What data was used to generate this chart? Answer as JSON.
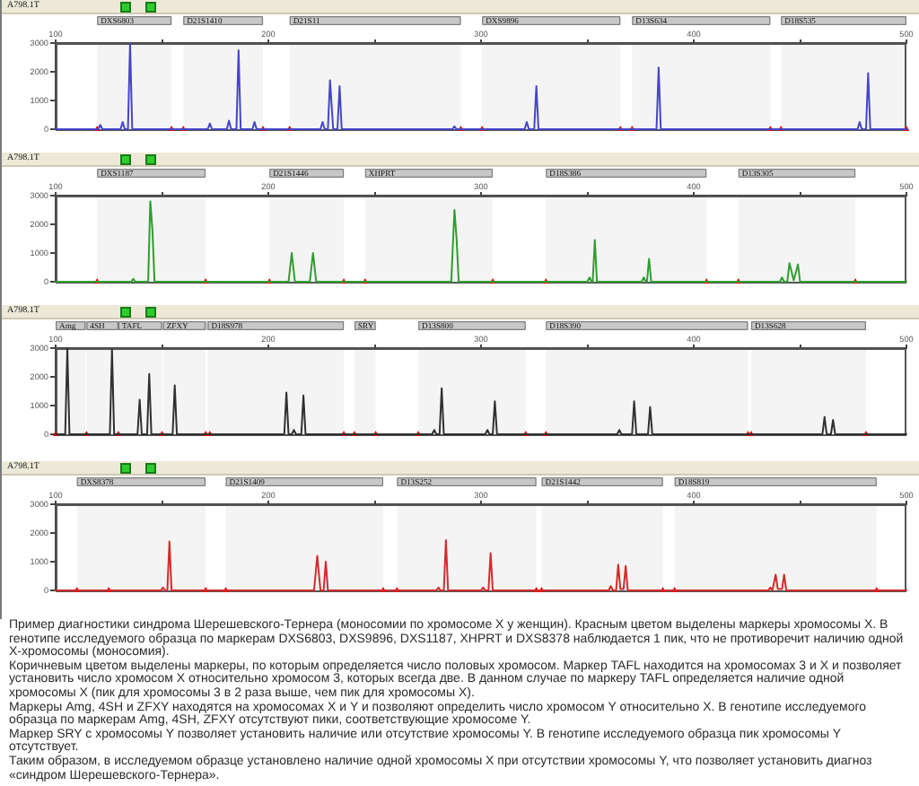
{
  "chart_data": [
    {
      "type": "line",
      "title": "A798.1T",
      "xlim": [
        100,
        500
      ],
      "xticks": [
        100,
        {
          "value": 150,
          "label": null
        },
        200,
        {
          "value": 250,
          "label": null
        },
        300,
        {
          "value": 350,
          "label": null
        },
        400,
        {
          "value": 450,
          "label": null
        },
        500
      ],
      "ylim": [
        0,
        3000
      ],
      "yticks": [
        0,
        1000,
        2000,
        3000
      ],
      "bands": [
        {
          "axis": "x",
          "from": 119.5,
          "to": 154.5,
          "label": "DXS6803",
          "color": "#c8c8c8"
        },
        {
          "axis": "x",
          "from": 160,
          "to": 197.5,
          "label": "D21S1410",
          "color": "#c8c8c8"
        },
        {
          "axis": "x",
          "from": 210,
          "to": 290.5,
          "label": "D21S11",
          "color": "#c8c8c8"
        },
        {
          "axis": "x",
          "from": 300.5,
          "to": 365.5,
          "label": "DXS9896",
          "color": "#c8c8c8"
        },
        {
          "axis": "x",
          "from": 371,
          "to": 436,
          "label": "D13S634",
          "color": "#c8c8c8"
        },
        {
          "axis": "x",
          "from": 441,
          "to": 500,
          "label": "D18S535",
          "color": "#c8c8c8"
        }
      ],
      "series": [
        {
          "color": "#4545c8",
          "x": [
            100,
            120,
            121,
            122,
            130.5,
            131.5,
            132.5,
            134,
            135,
            136,
            171.5,
            172.5,
            173.5,
            180.5,
            181.5,
            182.5,
            185,
            186,
            187,
            192.5,
            193.5,
            194.5,
            224.5,
            225.5,
            226.5,
            228,
            229,
            230.5,
            232.5,
            233.5,
            234.5,
            286.5,
            287.5,
            288.5,
            320.5,
            321.5,
            322.5,
            325,
            326,
            327,
            382.5,
            383.5,
            384.5,
            477,
            478,
            479,
            481,
            482,
            483,
            500
          ],
          "values": [
            0,
            0,
            150,
            0,
            0,
            250,
            0,
            0,
            3000,
            0,
            0,
            200,
            0,
            0,
            300,
            0,
            0,
            2750,
            0,
            0,
            250,
            0,
            0,
            250,
            0,
            0,
            1700,
            0,
            0,
            1500,
            0,
            0,
            100,
            0,
            0,
            250,
            0,
            0,
            1500,
            0,
            0,
            2150,
            0,
            0,
            250,
            0,
            0,
            1950,
            0,
            0
          ]
        },
        {
          "type": "scatter",
          "marker": "triangle",
          "color": "#e01010",
          "x": [
            119.5,
            154.5,
            160,
            197.5,
            210,
            290.5,
            300.5,
            365.5,
            371,
            436,
            441,
            500
          ],
          "values": [
            0,
            0,
            0,
            0,
            0,
            0,
            0,
            0,
            0,
            0,
            0,
            0
          ]
        }
      ]
    },
    {
      "type": "line",
      "title": "A798.1T",
      "xlim": [
        100,
        500
      ],
      "xticks": [
        100,
        {
          "value": 150,
          "label": null
        },
        200,
        {
          "value": 250,
          "label": null
        },
        300,
        {
          "value": 350,
          "label": null
        },
        400,
        {
          "value": 450,
          "label": null
        },
        500
      ],
      "ylim": [
        0,
        3000
      ],
      "yticks": [
        0,
        1000,
        2000,
        3000
      ],
      "bands": [
        {
          "axis": "x",
          "from": 119.5,
          "to": 170.5,
          "label": "DXS1187",
          "color": "#c8c8c8"
        },
        {
          "axis": "x",
          "from": 200.5,
          "to": 235.5,
          "label": "D21S1446",
          "color": "#c8c8c8"
        },
        {
          "axis": "x",
          "from": 245.5,
          "to": 305.5,
          "label": "XHPRT",
          "color": "#c8c8c8"
        },
        {
          "axis": "x",
          "from": 330.5,
          "to": 406,
          "label": "D18S386",
          "color": "#c8c8c8"
        },
        {
          "axis": "x",
          "from": 421,
          "to": 476,
          "label": "D13S305",
          "color": "#c8c8c8"
        }
      ],
      "series": [
        {
          "color": "#2e9e2e",
          "x": [
            100,
            135.5,
            136.5,
            137.5,
            143.5,
            144.5,
            145.5,
            146.5,
            209.5,
            211,
            212.5,
            219.5,
            221,
            222.5,
            286,
            287.5,
            288.5,
            289.5,
            350,
            351,
            352,
            352.5,
            353.5,
            354.5,
            375.5,
            376.5,
            377.5,
            378,
            379,
            380,
            440.5,
            441.5,
            442.5,
            444,
            445,
            447,
            449,
            450,
            500
          ],
          "values": [
            0,
            0,
            100,
            0,
            0,
            2800,
            1800,
            0,
            0,
            1000,
            0,
            0,
            1000,
            0,
            0,
            2500,
            1500,
            0,
            0,
            150,
            0,
            0,
            1450,
            0,
            0,
            150,
            0,
            0,
            800,
            0,
            0,
            150,
            0,
            0,
            650,
            50,
            600,
            0,
            0
          ]
        },
        {
          "type": "scatter",
          "marker": "triangle",
          "color": "#e01010",
          "x": [
            119.5,
            170.5,
            200.5,
            235.5,
            245.5,
            305.5,
            330.5,
            406,
            421,
            476
          ],
          "values": [
            0,
            0,
            0,
            0,
            0,
            0,
            0,
            0,
            0,
            0
          ]
        }
      ]
    },
    {
      "type": "line",
      "title": "A798.1T",
      "xlim": [
        100,
        500
      ],
      "xticks": [
        100,
        {
          "value": 150,
          "label": null
        },
        200,
        {
          "value": 250,
          "label": null
        },
        300,
        {
          "value": 350,
          "label": null
        },
        400,
        {
          "value": 450,
          "label": null
        },
        500
      ],
      "ylim": [
        0,
        3000
      ],
      "yticks": [
        0,
        1000,
        2000,
        3000
      ],
      "bands": [
        {
          "axis": "x",
          "from": 100,
          "to": 114,
          "label": "Amg",
          "color": "#c8c8c8"
        },
        {
          "axis": "x",
          "from": 114.5,
          "to": 129.5,
          "label": "4SH",
          "color": "#c8c8c8"
        },
        {
          "axis": "x",
          "from": 129.5,
          "to": 150,
          "label": "TAFL",
          "color": "#c8c8c8"
        },
        {
          "axis": "x",
          "from": 150.5,
          "to": 170.5,
          "label": "ZFXY",
          "color": "#c8c8c8"
        },
        {
          "axis": "x",
          "from": 171.5,
          "to": 235.5,
          "label": "D18S978",
          "color": "#c8c8c8"
        },
        {
          "axis": "x",
          "from": 240.5,
          "to": 250.5,
          "label": "SRY",
          "color": "#c8c8c8"
        },
        {
          "axis": "x",
          "from": 270.5,
          "to": 321,
          "label": "D13S800",
          "color": "#c8c8c8"
        },
        {
          "axis": "x",
          "from": 330.5,
          "to": 425.5,
          "label": "D18S390",
          "color": "#c8c8c8"
        },
        {
          "axis": "x",
          "from": 427,
          "to": 481,
          "label": "D13S628",
          "color": "#c8c8c8"
        }
      ],
      "series": [
        {
          "color": "#303030",
          "x": [
            100,
            104.5,
            105.5,
            106.5,
            125.5,
            126.5,
            127.5,
            138.5,
            139.5,
            140.5,
            143,
            144,
            145,
            155,
            156,
            157,
            207.5,
            208.5,
            209.5,
            211,
            212,
            213,
            215.5,
            216.5,
            217.5,
            277,
            278,
            279,
            280.5,
            281.5,
            282.5,
            302,
            303,
            304,
            305.5,
            306.5,
            307.5,
            364,
            365,
            366,
            371,
            372,
            373,
            378.5,
            379.5,
            380.5,
            460.5,
            461.5,
            462.5,
            464.5,
            465.5,
            466.5,
            500
          ],
          "values": [
            0,
            0,
            3000,
            0,
            0,
            2950,
            0,
            0,
            1200,
            0,
            0,
            2100,
            0,
            0,
            1700,
            0,
            0,
            1450,
            0,
            0,
            150,
            0,
            0,
            1350,
            0,
            0,
            150,
            0,
            0,
            1600,
            0,
            0,
            150,
            0,
            0,
            1150,
            0,
            0,
            150,
            0,
            0,
            1150,
            0,
            0,
            950,
            0,
            0,
            600,
            0,
            0,
            500,
            0,
            0
          ]
        },
        {
          "type": "scatter",
          "marker": "triangle",
          "color": "#e01010",
          "x": [
            100,
            114.5,
            129.5,
            150,
            170.5,
            172.5,
            235.5,
            240.5,
            250.5,
            270.5,
            321,
            330.5,
            425.5,
            427,
            481
          ],
          "values": [
            0,
            0,
            0,
            0,
            0,
            0,
            0,
            0,
            0,
            0,
            0,
            0,
            0,
            0,
            0
          ]
        }
      ]
    },
    {
      "type": "line",
      "title": "A798.1T",
      "xlim": [
        100,
        500
      ],
      "xticks": [
        100,
        {
          "value": 150,
          "label": null
        },
        200,
        {
          "value": 250,
          "label": null
        },
        300,
        {
          "value": 350,
          "label": null
        },
        400,
        {
          "value": 450,
          "label": null
        },
        500
      ],
      "ylim": [
        0,
        3000
      ],
      "yticks": [
        0,
        1000,
        2000,
        3000
      ],
      "bands": [
        {
          "axis": "x",
          "from": 110,
          "to": 170.5,
          "label": "DXS8378",
          "color": "#c8c8c8"
        },
        {
          "axis": "x",
          "from": 180,
          "to": 254,
          "label": "D21S1409",
          "color": "#c8c8c8"
        },
        {
          "axis": "x",
          "from": 260.5,
          "to": 326,
          "label": "D13S252",
          "color": "#c8c8c8"
        },
        {
          "axis": "x",
          "from": 328.5,
          "to": 385.5,
          "label": "D21S1442",
          "color": "#c8c8c8"
        },
        {
          "axis": "x",
          "from": 391,
          "to": 486,
          "label": "D18S819",
          "color": "#c8c8c8"
        }
      ],
      "series": [
        {
          "color": "#d42a2a",
          "x": [
            100,
            149.5,
            150.5,
            151.5,
            152.5,
            153.5,
            154.5,
            221.5,
            223,
            224.5,
            226,
            227,
            228,
            279,
            280,
            281,
            282.5,
            283.5,
            284.5,
            300,
            301,
            302,
            303.5,
            304.5,
            305.5,
            360,
            361,
            362,
            363.5,
            364.5,
            365.5,
            367,
            368,
            369,
            435,
            436,
            437,
            437.5,
            438.5,
            439.5,
            441.5,
            442.5,
            443.5,
            500
          ],
          "values": [
            0,
            0,
            100,
            0,
            0,
            1700,
            0,
            0,
            1200,
            0,
            0,
            1000,
            0,
            0,
            100,
            0,
            0,
            1750,
            0,
            0,
            100,
            0,
            0,
            1300,
            0,
            0,
            150,
            0,
            0,
            900,
            50,
            50,
            850,
            0,
            0,
            100,
            0,
            0,
            550,
            50,
            50,
            550,
            0,
            0
          ]
        },
        {
          "type": "scatter",
          "marker": "triangle",
          "color": "#e01010",
          "x": [
            110,
            125,
            170.5,
            180,
            254,
            260.5,
            326,
            328.5,
            385.5,
            391,
            486
          ],
          "values": [
            0,
            0,
            0,
            0,
            0,
            0,
            0,
            0,
            0,
            0,
            0
          ]
        }
      ],
      "annotations": [
        "Пример диагностики синдрома Шерешевского-Тернера (моносомии по хромосоме X у женщин). Красным цветом выделены маркеры хромосомы X. В генотипе исследуемого образца по маркерам DXS6803, DXS9896, DXS1187, XHPRT и DXS8378 наблюдается 1 пик, что не противоречит наличию одной X-хромосомы (моносомия).",
        "Коричневым цветом выделены маркеры, по которым определяется число половых хромосом. Маркер TAFL находится на хромосомах 3 и X и позволяет установить число хромосом X относительно хромосом 3, которых всегда две. В данном случае по маркеру TAFL определяется наличие одной хромосомы X (пик для хромосомы 3 в 2 раза выше, чем пик для хромосомы X).",
        "Маркеры Amg, 4SH и ZFXY находятся на хромосомах X и Y и позволяют определить число хромосом Y относительно X. В генотипе исследуемого образца по маркерам Amg, 4SH, ZFXY отсутствуют пики, соответствующие хромосоме Y.",
        "Маркер SRY с хромосомы Y позволяет установить наличие или отсутствие хромосомы Y. В генотипе исследуемого образца пик хромосомы Y отсутствует.",
        "Таким образом, в исследуемом образце установлено наличие одной хромосомы X при отсутствии хромосомы Y, что позволяет установить диагноз «синдром Шерешевского-Тернера»."
      ]
    }
  ]
}
